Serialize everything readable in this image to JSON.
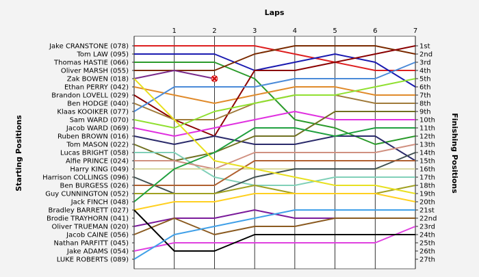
{
  "chart_data": {
    "type": "line",
    "title": "",
    "x_axis_title": "Laps",
    "left_axis_title": "Starting Positions",
    "right_axis_title": "Finishing Positions",
    "laps": [
      0,
      1,
      2,
      3,
      4,
      5,
      6,
      7
    ],
    "x_tick_labels": [
      "1",
      "2",
      "3",
      "4",
      "5",
      "6",
      "7"
    ],
    "finishing_labels": [
      "1st",
      "2nd",
      "3rd",
      "4th",
      "5th",
      "6th",
      "7th",
      "8th",
      "9th",
      "10th",
      "11th",
      "12th",
      "13th",
      "14th",
      "15th",
      "16th",
      "17th",
      "18th",
      "19th",
      "20th",
      "21st",
      "22nd",
      "23rd",
      "24th",
      "25th",
      "26th",
      "27th"
    ],
    "grid": "vertical",
    "legend": "none",
    "series": [
      {
        "name": "Jake CRANSTONE (078)",
        "color": "#dd1f1f",
        "values": [
          1,
          1,
          1,
          1,
          2,
          3,
          4,
          4
        ]
      },
      {
        "name": "Tom LAW (095)",
        "color": "#1a1ab0",
        "values": [
          2,
          2,
          2,
          4,
          3,
          2,
          3,
          6
        ]
      },
      {
        "name": "Thomas HASTIE (066)",
        "color": "#2a9a2a",
        "values": [
          3,
          3,
          3,
          5,
          10,
          11,
          13,
          12
        ]
      },
      {
        "name": "Oliver MARSH (055)",
        "color": "#7a2a00",
        "values": [
          4,
          4,
          4,
          2,
          1,
          1,
          1,
          2
        ]
      },
      {
        "name": "Zak BOWEN (018)",
        "color": "#7a2a8a",
        "values": [
          5,
          4,
          5,
          null,
          null,
          null,
          null,
          null
        ],
        "dnf": true
      },
      {
        "name": "Ethan PERRY (042)",
        "color": "#e08a2a",
        "values": [
          6,
          7,
          8,
          7,
          6,
          6,
          7,
          7
        ]
      },
      {
        "name": "Brandon LOVELL (029)",
        "color": "#8a0000",
        "values": [
          7,
          10,
          12,
          4,
          4,
          3,
          2,
          1
        ]
      },
      {
        "name": "Ben HODGE (040)",
        "color": "#a07a3a",
        "values": [
          8,
          10,
          10,
          8,
          7,
          7,
          8,
          8
        ]
      },
      {
        "name": "Klaas KOOIKER (077)",
        "color": "#4a8ad8",
        "values": [
          9,
          6,
          6,
          6,
          5,
          5,
          5,
          3
        ]
      },
      {
        "name": "Sam WARD (070)",
        "color": "#90e030",
        "values": [
          10,
          11,
          9,
          8,
          7,
          7,
          6,
          5
        ]
      },
      {
        "name": "Jacob WARD (069)",
        "color": "#e030e0",
        "values": [
          11,
          12,
          11,
          10,
          9,
          10,
          10,
          10
        ]
      },
      {
        "name": "Ruben BROWN (016)",
        "color": "#2a2a6a",
        "values": [
          12,
          13,
          12,
          13,
          13,
          12,
          12,
          15
        ]
      },
      {
        "name": "Tom MASON (022)",
        "color": "#707020",
        "values": [
          13,
          15,
          14,
          12,
          12,
          9,
          9,
          9
        ]
      },
      {
        "name": "Lucas BRIGHT (058)",
        "color": "#80d0b8",
        "values": [
          14,
          14,
          17,
          18,
          18,
          17,
          17,
          17
        ]
      },
      {
        "name": "Alfie PRINCE (024)",
        "color": "#d09080",
        "values": [
          15,
          15,
          16,
          14,
          14,
          14,
          14,
          13
        ]
      },
      {
        "name": "Harry KING (049)",
        "color": "#d8d8a0",
        "values": [
          16,
          16,
          16,
          16,
          16,
          16,
          16,
          16
        ]
      },
      {
        "name": "Harrison COLLINGS (096)",
        "color": "#405050",
        "values": [
          17,
          19,
          19,
          17,
          16,
          16,
          16,
          14
        ]
      },
      {
        "name": "Ben BURGESS (026)",
        "color": "#b06030",
        "values": [
          18,
          18,
          18,
          15,
          15,
          15,
          15,
          15
        ]
      },
      {
        "name": "Guy CUNNINGTON (052)",
        "color": "#a0a020",
        "values": [
          19,
          19,
          19,
          18,
          19,
          19,
          19,
          18
        ]
      },
      {
        "name": "Jack FINCH (048)",
        "color": "#20a040",
        "values": [
          20,
          16,
          14,
          11,
          11,
          12,
          11,
          11
        ]
      },
      {
        "name": "Bradley BARRETT (027)",
        "color": "#e8e020",
        "values": [
          5,
          10,
          15,
          16,
          17,
          18,
          18,
          19
        ]
      },
      {
        "name": "Brodie TRAYHORN (041)",
        "color": "#7a1a9a",
        "values": [
          23,
          22,
          22,
          21,
          22,
          22,
          22,
          22
        ]
      },
      {
        "name": "Oliver TRUEMAN (020)",
        "color": "#ffd020",
        "values": [
          21,
          20,
          20,
          19,
          19,
          19,
          19,
          20
        ]
      },
      {
        "name": "Jacob CAINE (056)",
        "color": "#8a5a20",
        "values": [
          24,
          22,
          24,
          23,
          23,
          22,
          22,
          22
        ]
      },
      {
        "name": "Nathan PARFITT (045)",
        "color": "#e040e0",
        "values": [
          26,
          25,
          25,
          25,
          25,
          25,
          25,
          23
        ]
      },
      {
        "name": "Jake ADAMS (054)",
        "color": "#000000",
        "values": [
          21,
          26,
          26,
          24,
          24,
          24,
          24,
          24
        ]
      },
      {
        "name": "LUKE ROBERTS (089)",
        "color": "#40a0e8",
        "values": [
          27,
          24,
          23,
          22,
          21,
          21,
          21,
          21
        ]
      }
    ]
  }
}
